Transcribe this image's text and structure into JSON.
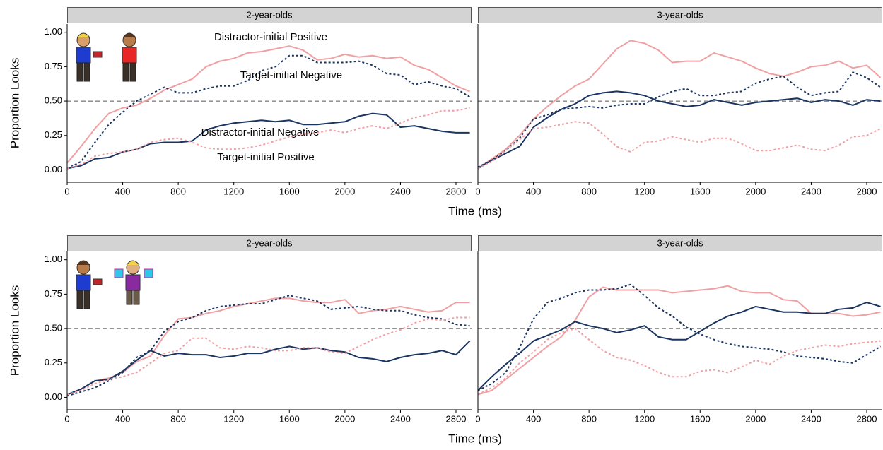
{
  "chart_data": [
    {
      "type": "line",
      "title": "2-year-olds",
      "ylabel": "Proportion Looks",
      "ylabel_color": "#000000",
      "xlabel": "Time (ms)",
      "x": [
        0,
        100,
        200,
        300,
        400,
        500,
        600,
        700,
        800,
        900,
        1000,
        1100,
        1200,
        1300,
        1400,
        1500,
        1600,
        1700,
        1800,
        1900,
        2000,
        2100,
        2200,
        2300,
        2400,
        2500,
        2600,
        2700,
        2800,
        2900
      ],
      "xlim": [
        0,
        2912
      ],
      "xticks": [
        0,
        400,
        800,
        1200,
        1600,
        2000,
        2400,
        2800
      ],
      "ylim": [
        -0.09,
        1.06
      ],
      "yticks": [
        {
          "value": 0,
          "label": "0.00"
        },
        {
          "value": 0.25,
          "label": "0.25"
        },
        {
          "value": 0.5,
          "label": "0.50"
        },
        {
          "value": 0.75,
          "label": "0.75"
        },
        {
          "value": 1,
          "label": "1.00"
        }
      ],
      "reference_line": 0.5,
      "series": [
        {
          "name": "Distractor-initial Positive",
          "color": "#f0a0a3",
          "dashed": false,
          "values": [
            0.05,
            0.17,
            0.3,
            0.41,
            0.45,
            0.47,
            0.52,
            0.58,
            0.62,
            0.66,
            0.75,
            0.79,
            0.81,
            0.85,
            0.86,
            0.88,
            0.9,
            0.87,
            0.8,
            0.81,
            0.84,
            0.82,
            0.83,
            0.81,
            0.82,
            0.76,
            0.73,
            0.67,
            0.61,
            0.57
          ]
        },
        {
          "name": "Target-initial Negative",
          "color": "#1b3561",
          "dashed": true,
          "values": [
            0.01,
            0.06,
            0.2,
            0.33,
            0.42,
            0.5,
            0.55,
            0.6,
            0.56,
            0.56,
            0.59,
            0.61,
            0.61,
            0.65,
            0.72,
            0.75,
            0.83,
            0.83,
            0.78,
            0.78,
            0.78,
            0.79,
            0.76,
            0.7,
            0.69,
            0.62,
            0.64,
            0.61,
            0.59,
            0.53
          ]
        },
        {
          "name": "Distractor-initial Negative",
          "color": "#1b3561",
          "dashed": false,
          "values": [
            0.01,
            0.03,
            0.08,
            0.09,
            0.13,
            0.15,
            0.19,
            0.2,
            0.2,
            0.21,
            0.29,
            0.32,
            0.34,
            0.35,
            0.36,
            0.35,
            0.36,
            0.33,
            0.33,
            0.34,
            0.35,
            0.39,
            0.41,
            0.4,
            0.31,
            0.32,
            0.3,
            0.28,
            0.27,
            0.27
          ]
        },
        {
          "name": "Target-initial Positive",
          "color": "#f0a0a3",
          "dashed": true,
          "values": [
            0.01,
            0.04,
            0.1,
            0.12,
            0.13,
            0.15,
            0.2,
            0.22,
            0.23,
            0.2,
            0.16,
            0.15,
            0.15,
            0.16,
            0.18,
            0.21,
            0.24,
            0.26,
            0.27,
            0.29,
            0.27,
            0.3,
            0.32,
            0.3,
            0.34,
            0.38,
            0.4,
            0.43,
            0.43,
            0.45
          ]
        }
      ]
    },
    {
      "type": "line",
      "title": "3-year-olds",
      "x": [
        0,
        100,
        200,
        300,
        400,
        500,
        600,
        700,
        800,
        900,
        1000,
        1100,
        1200,
        1300,
        1400,
        1500,
        1600,
        1700,
        1800,
        1900,
        2000,
        2100,
        2200,
        2300,
        2400,
        2500,
        2600,
        2700,
        2800,
        2900
      ],
      "xlim": [
        0,
        2912
      ],
      "xticks": [
        0,
        400,
        800,
        1200,
        1600,
        2000,
        2400,
        2800
      ],
      "ylim": [
        -0.09,
        1.06
      ],
      "reference_line": 0.5,
      "series": [
        {
          "color": "#f0a0a3",
          "dashed": false,
          "values": [
            0.01,
            0.08,
            0.15,
            0.25,
            0.37,
            0.46,
            0.54,
            0.61,
            0.66,
            0.77,
            0.88,
            0.94,
            0.92,
            0.87,
            0.78,
            0.79,
            0.79,
            0.85,
            0.82,
            0.79,
            0.74,
            0.7,
            0.68,
            0.71,
            0.75,
            0.76,
            0.79,
            0.74,
            0.76,
            0.67
          ]
        },
        {
          "color": "#1b3561",
          "dashed": true,
          "values": [
            0.02,
            0.07,
            0.14,
            0.23,
            0.37,
            0.4,
            0.44,
            0.45,
            0.46,
            0.45,
            0.47,
            0.48,
            0.48,
            0.53,
            0.57,
            0.59,
            0.54,
            0.54,
            0.56,
            0.57,
            0.63,
            0.66,
            0.68,
            0.6,
            0.54,
            0.56,
            0.57,
            0.71,
            0.67,
            0.6
          ]
        },
        {
          "color": "#1b3561",
          "dashed": false,
          "values": [
            0.01,
            0.07,
            0.12,
            0.17,
            0.31,
            0.38,
            0.44,
            0.48,
            0.54,
            0.56,
            0.57,
            0.56,
            0.54,
            0.5,
            0.48,
            0.46,
            0.47,
            0.51,
            0.49,
            0.47,
            0.49,
            0.5,
            0.51,
            0.52,
            0.49,
            0.51,
            0.5,
            0.47,
            0.51,
            0.5
          ]
        },
        {
          "color": "#f0a0a3",
          "dashed": true,
          "values": [
            0.01,
            0.06,
            0.14,
            0.22,
            0.3,
            0.31,
            0.33,
            0.35,
            0.34,
            0.26,
            0.17,
            0.13,
            0.2,
            0.21,
            0.24,
            0.22,
            0.2,
            0.23,
            0.23,
            0.19,
            0.14,
            0.14,
            0.16,
            0.18,
            0.15,
            0.14,
            0.18,
            0.24,
            0.25,
            0.3
          ]
        }
      ]
    },
    {
      "type": "line",
      "title": "2-year-olds",
      "ylabel": "Proportion Looks",
      "ylabel_color": "#1b3561",
      "xlabel": "Time (ms)",
      "x": [
        0,
        100,
        200,
        300,
        400,
        500,
        600,
        700,
        800,
        900,
        1000,
        1100,
        1200,
        1300,
        1400,
        1500,
        1600,
        1700,
        1800,
        1900,
        2000,
        2100,
        2200,
        2300,
        2400,
        2500,
        2600,
        2700,
        2800,
        2900
      ],
      "xlim": [
        0,
        2912
      ],
      "xticks": [
        0,
        400,
        800,
        1200,
        1600,
        2000,
        2400,
        2800
      ],
      "ylim": [
        -0.09,
        1.06
      ],
      "yticks": [
        {
          "value": 0,
          "label": "0.00"
        },
        {
          "value": 0.25,
          "label": "0.25"
        },
        {
          "value": 0.5,
          "label": "0.50"
        },
        {
          "value": 0.75,
          "label": "0.75"
        },
        {
          "value": 1,
          "label": "1.00"
        }
      ],
      "reference_line": 0.5,
      "series": [
        {
          "color": "#f0a0a3",
          "dashed": false,
          "values": [
            0.02,
            0.06,
            0.12,
            0.14,
            0.18,
            0.26,
            0.3,
            0.45,
            0.57,
            0.58,
            0.61,
            0.63,
            0.66,
            0.68,
            0.7,
            0.72,
            0.72,
            0.7,
            0.69,
            0.69,
            0.71,
            0.61,
            0.63,
            0.64,
            0.66,
            0.64,
            0.62,
            0.63,
            0.69,
            0.69
          ]
        },
        {
          "color": "#1b3561",
          "dashed": true,
          "values": [
            0.01,
            0.04,
            0.07,
            0.12,
            0.18,
            0.29,
            0.34,
            0.48,
            0.55,
            0.58,
            0.63,
            0.66,
            0.67,
            0.68,
            0.68,
            0.71,
            0.74,
            0.72,
            0.7,
            0.64,
            0.65,
            0.66,
            0.64,
            0.63,
            0.63,
            0.6,
            0.58,
            0.57,
            0.53,
            0.52
          ]
        },
        {
          "color": "#1b3561",
          "dashed": false,
          "values": [
            0.02,
            0.06,
            0.12,
            0.13,
            0.19,
            0.27,
            0.34,
            0.3,
            0.32,
            0.31,
            0.31,
            0.29,
            0.3,
            0.32,
            0.32,
            0.35,
            0.37,
            0.35,
            0.36,
            0.34,
            0.33,
            0.29,
            0.28,
            0.26,
            0.29,
            0.31,
            0.32,
            0.34,
            0.31,
            0.41
          ]
        },
        {
          "color": "#f0a0a3",
          "dashed": true,
          "values": [
            0.02,
            0.05,
            0.1,
            0.13,
            0.15,
            0.18,
            0.25,
            0.32,
            0.34,
            0.43,
            0.43,
            0.36,
            0.35,
            0.37,
            0.36,
            0.34,
            0.34,
            0.36,
            0.36,
            0.33,
            0.32,
            0.37,
            0.42,
            0.46,
            0.49,
            0.54,
            0.57,
            0.56,
            0.58,
            0.58
          ]
        }
      ]
    },
    {
      "type": "line",
      "title": "3-year-olds",
      "x": [
        0,
        100,
        200,
        300,
        400,
        500,
        600,
        700,
        800,
        900,
        1000,
        1100,
        1200,
        1300,
        1400,
        1500,
        1600,
        1700,
        1800,
        1900,
        2000,
        2100,
        2200,
        2300,
        2400,
        2500,
        2600,
        2700,
        2800,
        2900
      ],
      "xlim": [
        0,
        2912
      ],
      "xticks": [
        0,
        400,
        800,
        1200,
        1600,
        2000,
        2400,
        2800
      ],
      "ylim": [
        -0.09,
        1.06
      ],
      "reference_line": 0.5,
      "series": [
        {
          "color": "#f0a0a3",
          "dashed": false,
          "values": [
            0.02,
            0.05,
            0.13,
            0.21,
            0.29,
            0.37,
            0.44,
            0.56,
            0.73,
            0.8,
            0.78,
            0.78,
            0.78,
            0.78,
            0.76,
            0.77,
            0.78,
            0.79,
            0.81,
            0.77,
            0.76,
            0.76,
            0.71,
            0.7,
            0.61,
            0.61,
            0.61,
            0.59,
            0.6,
            0.62
          ]
        },
        {
          "color": "#1b3561",
          "dashed": true,
          "values": [
            0.05,
            0.1,
            0.18,
            0.36,
            0.57,
            0.69,
            0.72,
            0.76,
            0.78,
            0.78,
            0.79,
            0.82,
            0.74,
            0.65,
            0.59,
            0.51,
            0.46,
            0.42,
            0.39,
            0.37,
            0.36,
            0.35,
            0.33,
            0.3,
            0.29,
            0.28,
            0.26,
            0.25,
            0.31,
            0.37
          ]
        },
        {
          "color": "#1b3561",
          "dashed": false,
          "values": [
            0.05,
            0.15,
            0.24,
            0.32,
            0.41,
            0.45,
            0.49,
            0.55,
            0.52,
            0.5,
            0.47,
            0.49,
            0.52,
            0.44,
            0.42,
            0.42,
            0.48,
            0.54,
            0.59,
            0.62,
            0.66,
            0.64,
            0.62,
            0.62,
            0.61,
            0.61,
            0.64,
            0.65,
            0.69,
            0.66
          ]
        },
        {
          "color": "#f0a0a3",
          "dashed": true,
          "values": [
            0.02,
            0.07,
            0.14,
            0.25,
            0.33,
            0.42,
            0.47,
            0.5,
            0.42,
            0.34,
            0.29,
            0.27,
            0.23,
            0.18,
            0.15,
            0.15,
            0.19,
            0.2,
            0.18,
            0.22,
            0.27,
            0.24,
            0.3,
            0.34,
            0.36,
            0.38,
            0.37,
            0.39,
            0.4,
            0.41
          ]
        }
      ]
    }
  ]
}
